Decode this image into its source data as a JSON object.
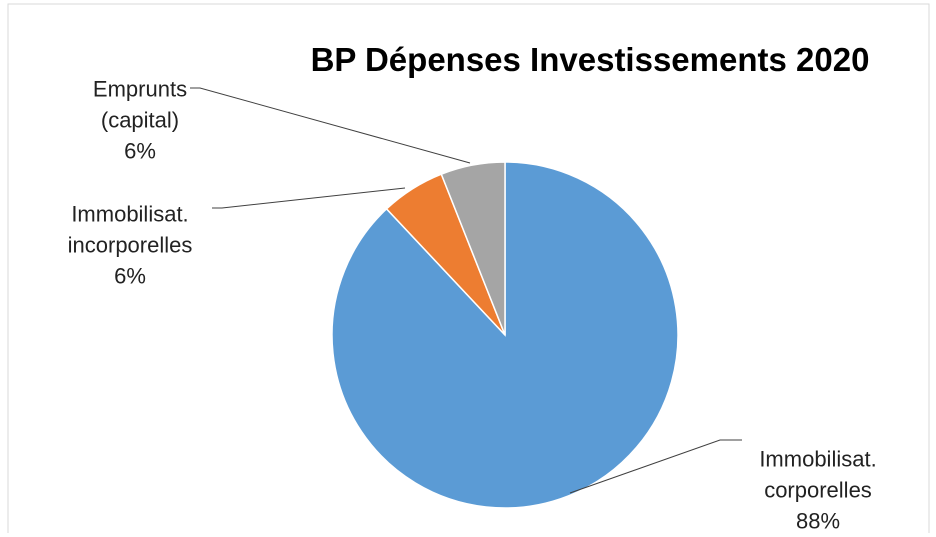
{
  "chart_data": {
    "type": "pie",
    "title": "BP Dépenses Investissements 2020",
    "categories": [
      "Immobilisat. corporelles",
      "Immobilisat. incorporelles",
      "Emprunts (capital)"
    ],
    "values": [
      88,
      6,
      6
    ],
    "value_labels": [
      "88%",
      "6%",
      "6%"
    ],
    "colors": [
      "#5b9bd5",
      "#ed7d31",
      "#a5a5a5"
    ]
  }
}
